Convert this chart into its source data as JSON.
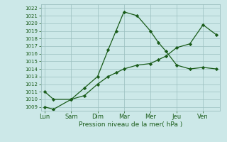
{
  "x_labels": [
    "Lun",
    "Sam",
    "Dim",
    "Mar",
    "Mer",
    "Jeu",
    "Ven"
  ],
  "x_ticks": [
    0,
    1,
    2,
    3,
    4,
    5,
    6
  ],
  "line1_x": [
    0,
    0.33,
    1,
    1.5,
    2,
    2.4,
    2.7,
    3,
    3.5,
    4,
    4.3,
    4.6,
    5,
    5.5,
    6,
    6.5
  ],
  "line1_y": [
    1011,
    1010,
    1010,
    1011.5,
    1013,
    1016.5,
    1019,
    1021.5,
    1021,
    1019,
    1017.5,
    1016.3,
    1014.5,
    1014,
    1014.2,
    1014
  ],
  "line2_x": [
    0,
    0.33,
    1,
    1.5,
    2,
    2.4,
    2.7,
    3,
    3.5,
    4,
    4.3,
    4.6,
    5,
    5.5,
    6,
    6.5
  ],
  "line2_y": [
    1009,
    1008.7,
    1010,
    1010.5,
    1012,
    1013,
    1013.5,
    1014,
    1014.5,
    1014.7,
    1015.2,
    1015.7,
    1016.8,
    1017.3,
    1019.8,
    1018.5
  ],
  "ylabel": "Pression niveau de la mer( hPa )",
  "ylim": [
    1008.5,
    1022.5
  ],
  "yticks": [
    1009,
    1010,
    1011,
    1012,
    1013,
    1014,
    1015,
    1016,
    1017,
    1018,
    1019,
    1020,
    1021,
    1022
  ],
  "xlim": [
    -0.15,
    6.65
  ],
  "line_color": "#1a5c1a",
  "bg_color": "#cce8e8",
  "grid_color": "#9bbfbf",
  "marker": "D",
  "marker_size": 2.2,
  "linewidth": 0.9,
  "tick_fontsize": 5.0,
  "xlabel_fontsize": 6.5
}
